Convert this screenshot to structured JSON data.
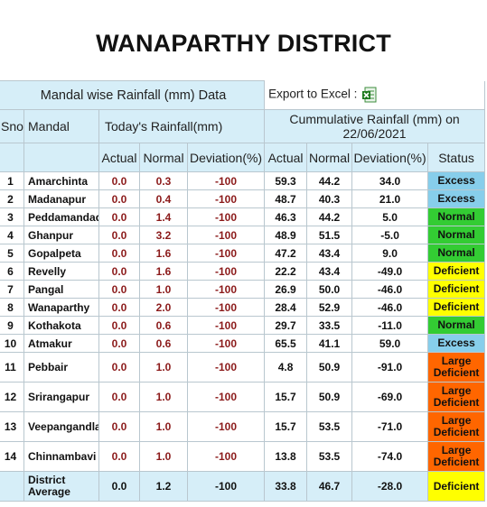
{
  "title": "WANAPARTHY DISTRICT",
  "table_title": "Mandal wise Rainfall (mm) Data",
  "export_label": "Export to Excel :",
  "headers": {
    "sno": "Sno",
    "mandal": "Mandal",
    "today": "Today's Rainfall(mm)",
    "cumulative": "Cummulative Rainfall (mm) on",
    "cumulative_date": "22/06/2021",
    "actual": "Actual",
    "normal": "Normal",
    "deviation": "Deviation(%)",
    "status": "Status"
  },
  "status_colors": {
    "Excess": "#87ceeb",
    "Normal": "#33cc33",
    "Deficient": "#ffff00",
    "Large Deficient": "#ff6600"
  },
  "rows": [
    {
      "sno": "1",
      "mandal": "Amarchinta",
      "t_actual": "0.0",
      "t_normal": "0.3",
      "t_dev": "-100",
      "c_actual": "59.3",
      "c_normal": "44.2",
      "c_dev": "34.0",
      "status": "Excess"
    },
    {
      "sno": "2",
      "mandal": "Madanapur",
      "t_actual": "0.0",
      "t_normal": "0.4",
      "t_dev": "-100",
      "c_actual": "48.7",
      "c_normal": "40.3",
      "c_dev": "21.0",
      "status": "Excess"
    },
    {
      "sno": "3",
      "mandal": "Peddamandadi",
      "t_actual": "0.0",
      "t_normal": "1.4",
      "t_dev": "-100",
      "c_actual": "46.3",
      "c_normal": "44.2",
      "c_dev": "5.0",
      "status": "Normal"
    },
    {
      "sno": "4",
      "mandal": "Ghanpur",
      "t_actual": "0.0",
      "t_normal": "3.2",
      "t_dev": "-100",
      "c_actual": "48.9",
      "c_normal": "51.5",
      "c_dev": "-5.0",
      "status": "Normal"
    },
    {
      "sno": "5",
      "mandal": "Gopalpeta",
      "t_actual": "0.0",
      "t_normal": "1.6",
      "t_dev": "-100",
      "c_actual": "47.2",
      "c_normal": "43.4",
      "c_dev": "9.0",
      "status": "Normal"
    },
    {
      "sno": "6",
      "mandal": "Revelly",
      "t_actual": "0.0",
      "t_normal": "1.6",
      "t_dev": "-100",
      "c_actual": "22.2",
      "c_normal": "43.4",
      "c_dev": "-49.0",
      "status": "Deficient"
    },
    {
      "sno": "7",
      "mandal": "Pangal",
      "t_actual": "0.0",
      "t_normal": "1.0",
      "t_dev": "-100",
      "c_actual": "26.9",
      "c_normal": "50.0",
      "c_dev": "-46.0",
      "status": "Deficient"
    },
    {
      "sno": "8",
      "mandal": "Wanaparthy",
      "t_actual": "0.0",
      "t_normal": "2.0",
      "t_dev": "-100",
      "c_actual": "28.4",
      "c_normal": "52.9",
      "c_dev": "-46.0",
      "status": "Deficient"
    },
    {
      "sno": "9",
      "mandal": "Kothakota",
      "t_actual": "0.0",
      "t_normal": "0.6",
      "t_dev": "-100",
      "c_actual": "29.7",
      "c_normal": "33.5",
      "c_dev": "-11.0",
      "status": "Normal"
    },
    {
      "sno": "10",
      "mandal": "Atmakur",
      "t_actual": "0.0",
      "t_normal": "0.6",
      "t_dev": "-100",
      "c_actual": "65.5",
      "c_normal": "41.1",
      "c_dev": "59.0",
      "status": "Excess"
    },
    {
      "sno": "11",
      "mandal": "Pebbair",
      "t_actual": "0.0",
      "t_normal": "1.0",
      "t_dev": "-100",
      "c_actual": "4.8",
      "c_normal": "50.9",
      "c_dev": "-91.0",
      "status": "Large Deficient"
    },
    {
      "sno": "12",
      "mandal": "Srirangapur",
      "t_actual": "0.0",
      "t_normal": "1.0",
      "t_dev": "-100",
      "c_actual": "15.7",
      "c_normal": "50.9",
      "c_dev": "-69.0",
      "status": "Large Deficient"
    },
    {
      "sno": "13",
      "mandal": "Veepangandla",
      "t_actual": "0.0",
      "t_normal": "1.0",
      "t_dev": "-100",
      "c_actual": "15.7",
      "c_normal": "53.5",
      "c_dev": "-71.0",
      "status": "Large Deficient"
    },
    {
      "sno": "14",
      "mandal": "Chinnambavi",
      "t_actual": "0.0",
      "t_normal": "1.0",
      "t_dev": "-100",
      "c_actual": "13.8",
      "c_normal": "53.5",
      "c_dev": "-74.0",
      "status": "Large Deficient"
    }
  ],
  "footer": {
    "label_line1": "District",
    "label_line2": "Average",
    "t_actual": "0.0",
    "t_normal": "1.2",
    "t_dev": "-100",
    "c_actual": "33.8",
    "c_normal": "46.7",
    "c_dev": "-28.0",
    "status": "Deficient"
  }
}
